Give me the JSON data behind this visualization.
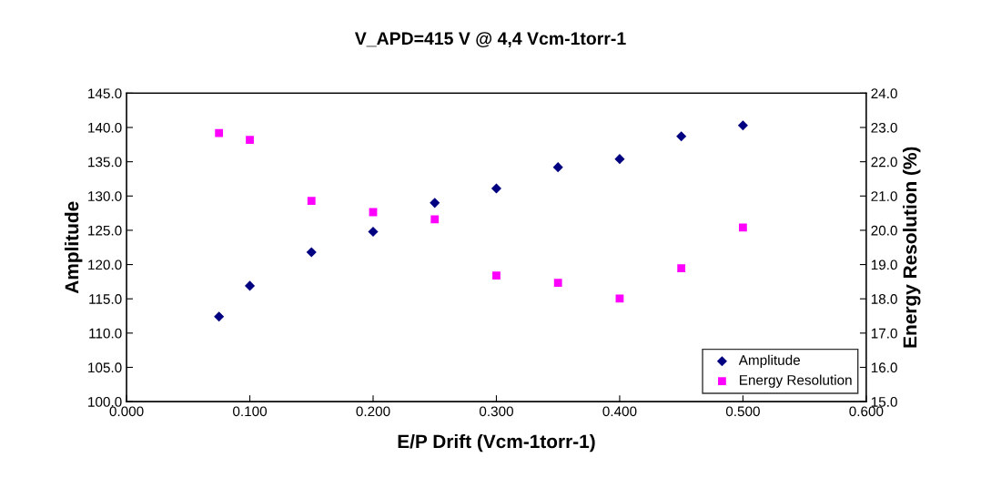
{
  "chart_data": {
    "type": "scatter",
    "title": "V_APD=415 V @ 4,4 Vcm-1torr-1",
    "xlabel": "E/P Drift (Vcm-1torr-1)",
    "ylabel": "Amplitude",
    "y2label": "Energy Resolution (%)",
    "x": [
      0.075,
      0.1,
      0.15,
      0.2,
      0.25,
      0.3,
      0.35,
      0.4,
      0.45,
      0.5
    ],
    "series": [
      {
        "name": "Amplitude",
        "color": "#000080",
        "marker": "diamond",
        "values": [
          112.4,
          116.9,
          121.8,
          124.8,
          129.0,
          131.1,
          134.2,
          135.4,
          138.7,
          140.3
        ]
      },
      {
        "name": "Energy Resolution",
        "color": "#ff00ff",
        "marker": "square",
        "axis": "y2",
        "values": [
          22.84,
          22.64,
          20.86,
          20.53,
          20.32,
          18.68,
          18.47,
          18.01,
          18.89,
          20.08
        ]
      }
    ],
    "xlim": [
      0,
      0.6
    ],
    "xticks": [
      {
        "value": 0,
        "label": "0.000"
      },
      {
        "value": 0.1,
        "label": "0.100"
      },
      {
        "value": 0.2,
        "label": "0.200"
      },
      {
        "value": 0.3,
        "label": "0.300"
      },
      {
        "value": 0.4,
        "label": "0.400"
      },
      {
        "value": 0.5,
        "label": "0.500"
      },
      {
        "value": 0.6,
        "label": "0.600"
      }
    ],
    "ylim": [
      100,
      145
    ],
    "yticks": [
      {
        "value": 100,
        "label": "100.0"
      },
      {
        "value": 105,
        "label": "105.0"
      },
      {
        "value": 110,
        "label": "110.0"
      },
      {
        "value": 115,
        "label": "115.0"
      },
      {
        "value": 120,
        "label": "120.0"
      },
      {
        "value": 125,
        "label": "125.0"
      },
      {
        "value": 130,
        "label": "130.0"
      },
      {
        "value": 135,
        "label": "135.0"
      },
      {
        "value": 140,
        "label": "140.0"
      },
      {
        "value": 145,
        "label": "145.0"
      }
    ],
    "y2lim": [
      15,
      24
    ],
    "y2ticks": [
      {
        "value": 15,
        "label": "15.0"
      },
      {
        "value": 16,
        "label": "16.0"
      },
      {
        "value": 17,
        "label": "17.0"
      },
      {
        "value": 18,
        "label": "18.0"
      },
      {
        "value": 19,
        "label": "19.0"
      },
      {
        "value": 20,
        "label": "20.0"
      },
      {
        "value": 21,
        "label": "21.0"
      },
      {
        "value": 22,
        "label": "22.0"
      },
      {
        "value": 23,
        "label": "23.0"
      },
      {
        "value": 24,
        "label": "24.0"
      }
    ],
    "grid": false,
    "legend": "bottom right"
  }
}
